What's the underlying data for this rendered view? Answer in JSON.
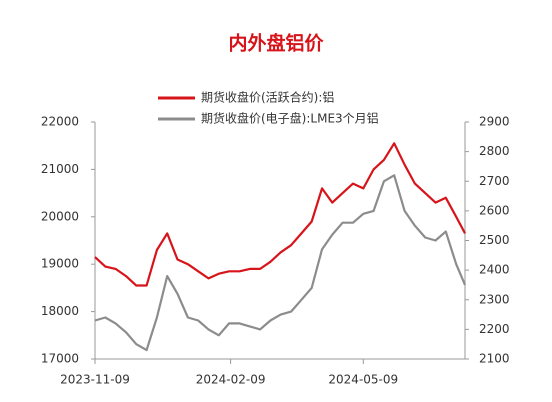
{
  "chart_data": {
    "type": "line",
    "title": "内外盘铝价",
    "x": [
      "2023-11-09",
      "2023-11-16",
      "2023-11-23",
      "2023-11-30",
      "2023-12-07",
      "2023-12-14",
      "2023-12-21",
      "2023-12-28",
      "2024-01-04",
      "2024-01-11",
      "2024-01-18",
      "2024-01-25",
      "2024-02-01",
      "2024-02-08",
      "2024-02-15",
      "2024-02-22",
      "2024-02-29",
      "2024-03-07",
      "2024-03-14",
      "2024-03-21",
      "2024-03-28",
      "2024-04-04",
      "2024-04-11",
      "2024-04-18",
      "2024-04-25",
      "2024-05-02",
      "2024-05-09",
      "2024-05-16",
      "2024-05-23",
      "2024-05-30",
      "2024-06-06",
      "2024-06-13",
      "2024-06-20",
      "2024-06-27",
      "2024-07-04",
      "2024-07-11",
      "2024-07-17"
    ],
    "series": [
      {
        "name": "期货收盘价(活跃合约):铝",
        "color": "#d7141a",
        "values": [
          19150,
          18950,
          18900,
          18750,
          18550,
          18550,
          19300,
          19650,
          19100,
          19000,
          18850,
          18700,
          18800,
          18850,
          18850,
          18900,
          18900,
          19050,
          19250,
          19400,
          19650,
          19900,
          20600,
          20300,
          20500,
          20700,
          20600,
          21000,
          21200,
          21550,
          21100,
          20700,
          20500,
          20300,
          20400,
          20000,
          19650
        ]
      },
      {
        "name": "期货收盘价(电子盘):LME3个月铝",
        "color": "#8c8c8c",
        "axis": "y2",
        "values": [
          2230,
          2240,
          2220,
          2190,
          2150,
          2130,
          2240,
          2380,
          2320,
          2240,
          2230,
          2200,
          2180,
          2220,
          2220,
          2210,
          2200,
          2230,
          2250,
          2260,
          2300,
          2340,
          2470,
          2520,
          2560,
          2560,
          2590,
          2600,
          2700,
          2720,
          2600,
          2550,
          2510,
          2500,
          2530,
          2420,
          2350
        ]
      }
    ],
    "xlim": [
      "2023-11-09",
      "2024-07-17"
    ],
    "xticks": [
      "2023-11-09",
      "2024-02-09",
      "2024-05-09"
    ],
    "ylim": [
      17000,
      22000
    ],
    "yticks": [
      17000,
      18000,
      19000,
      20000,
      21000,
      22000
    ],
    "y2lim": [
      2100,
      2900
    ],
    "y2ticks": [
      2100,
      2200,
      2300,
      2400,
      2500,
      2600,
      2700,
      2800,
      2900
    ],
    "legend": "top"
  }
}
